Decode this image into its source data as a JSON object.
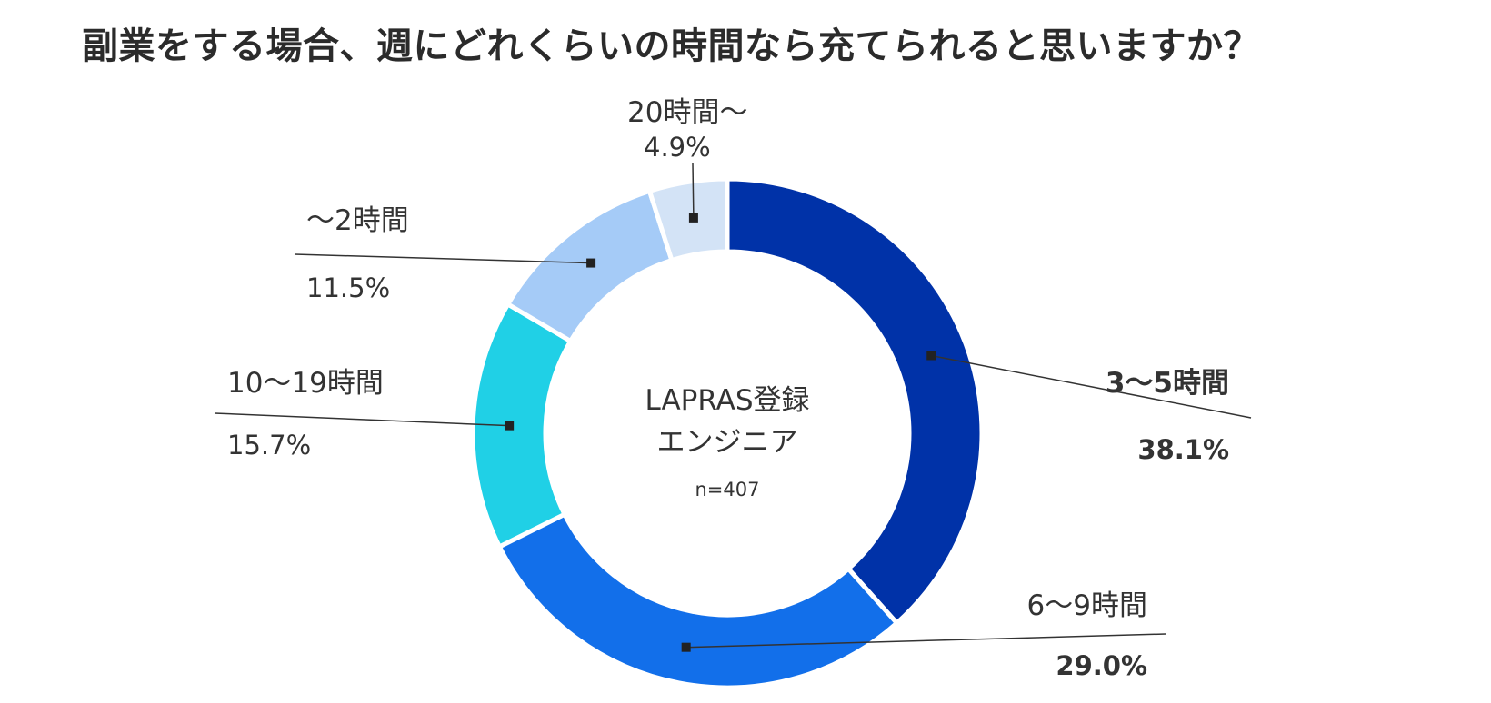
{
  "chart_data": {
    "type": "pie",
    "style": "donut",
    "title": "副業をする場合、週にどれくらいの時間なら充てられると思いますか？",
    "center_label": {
      "line1": "LAPRAS登録",
      "line2": "エンジニア",
      "sample": "n=407"
    },
    "slices": [
      {
        "label": "3〜5時間",
        "value": 38.1,
        "value_label": "38.1%",
        "color": "#0032A8",
        "emphasis": true
      },
      {
        "label": "6〜9時間",
        "value": 29.0,
        "value_label": "29.0%",
        "color": "#126FEA",
        "emphasis": false
      },
      {
        "label": "10〜19時間",
        "value": 15.7,
        "value_label": "15.7%",
        "color": "#20D0E6",
        "emphasis": false
      },
      {
        "label": "〜2時間",
        "value": 11.5,
        "value_label": "11.5%",
        "color": "#A5CBF7",
        "emphasis": false
      },
      {
        "label": "20時間〜",
        "value": 4.9,
        "value_label": "4.9%",
        "color": "#D3E3F6",
        "emphasis": false
      }
    ]
  }
}
